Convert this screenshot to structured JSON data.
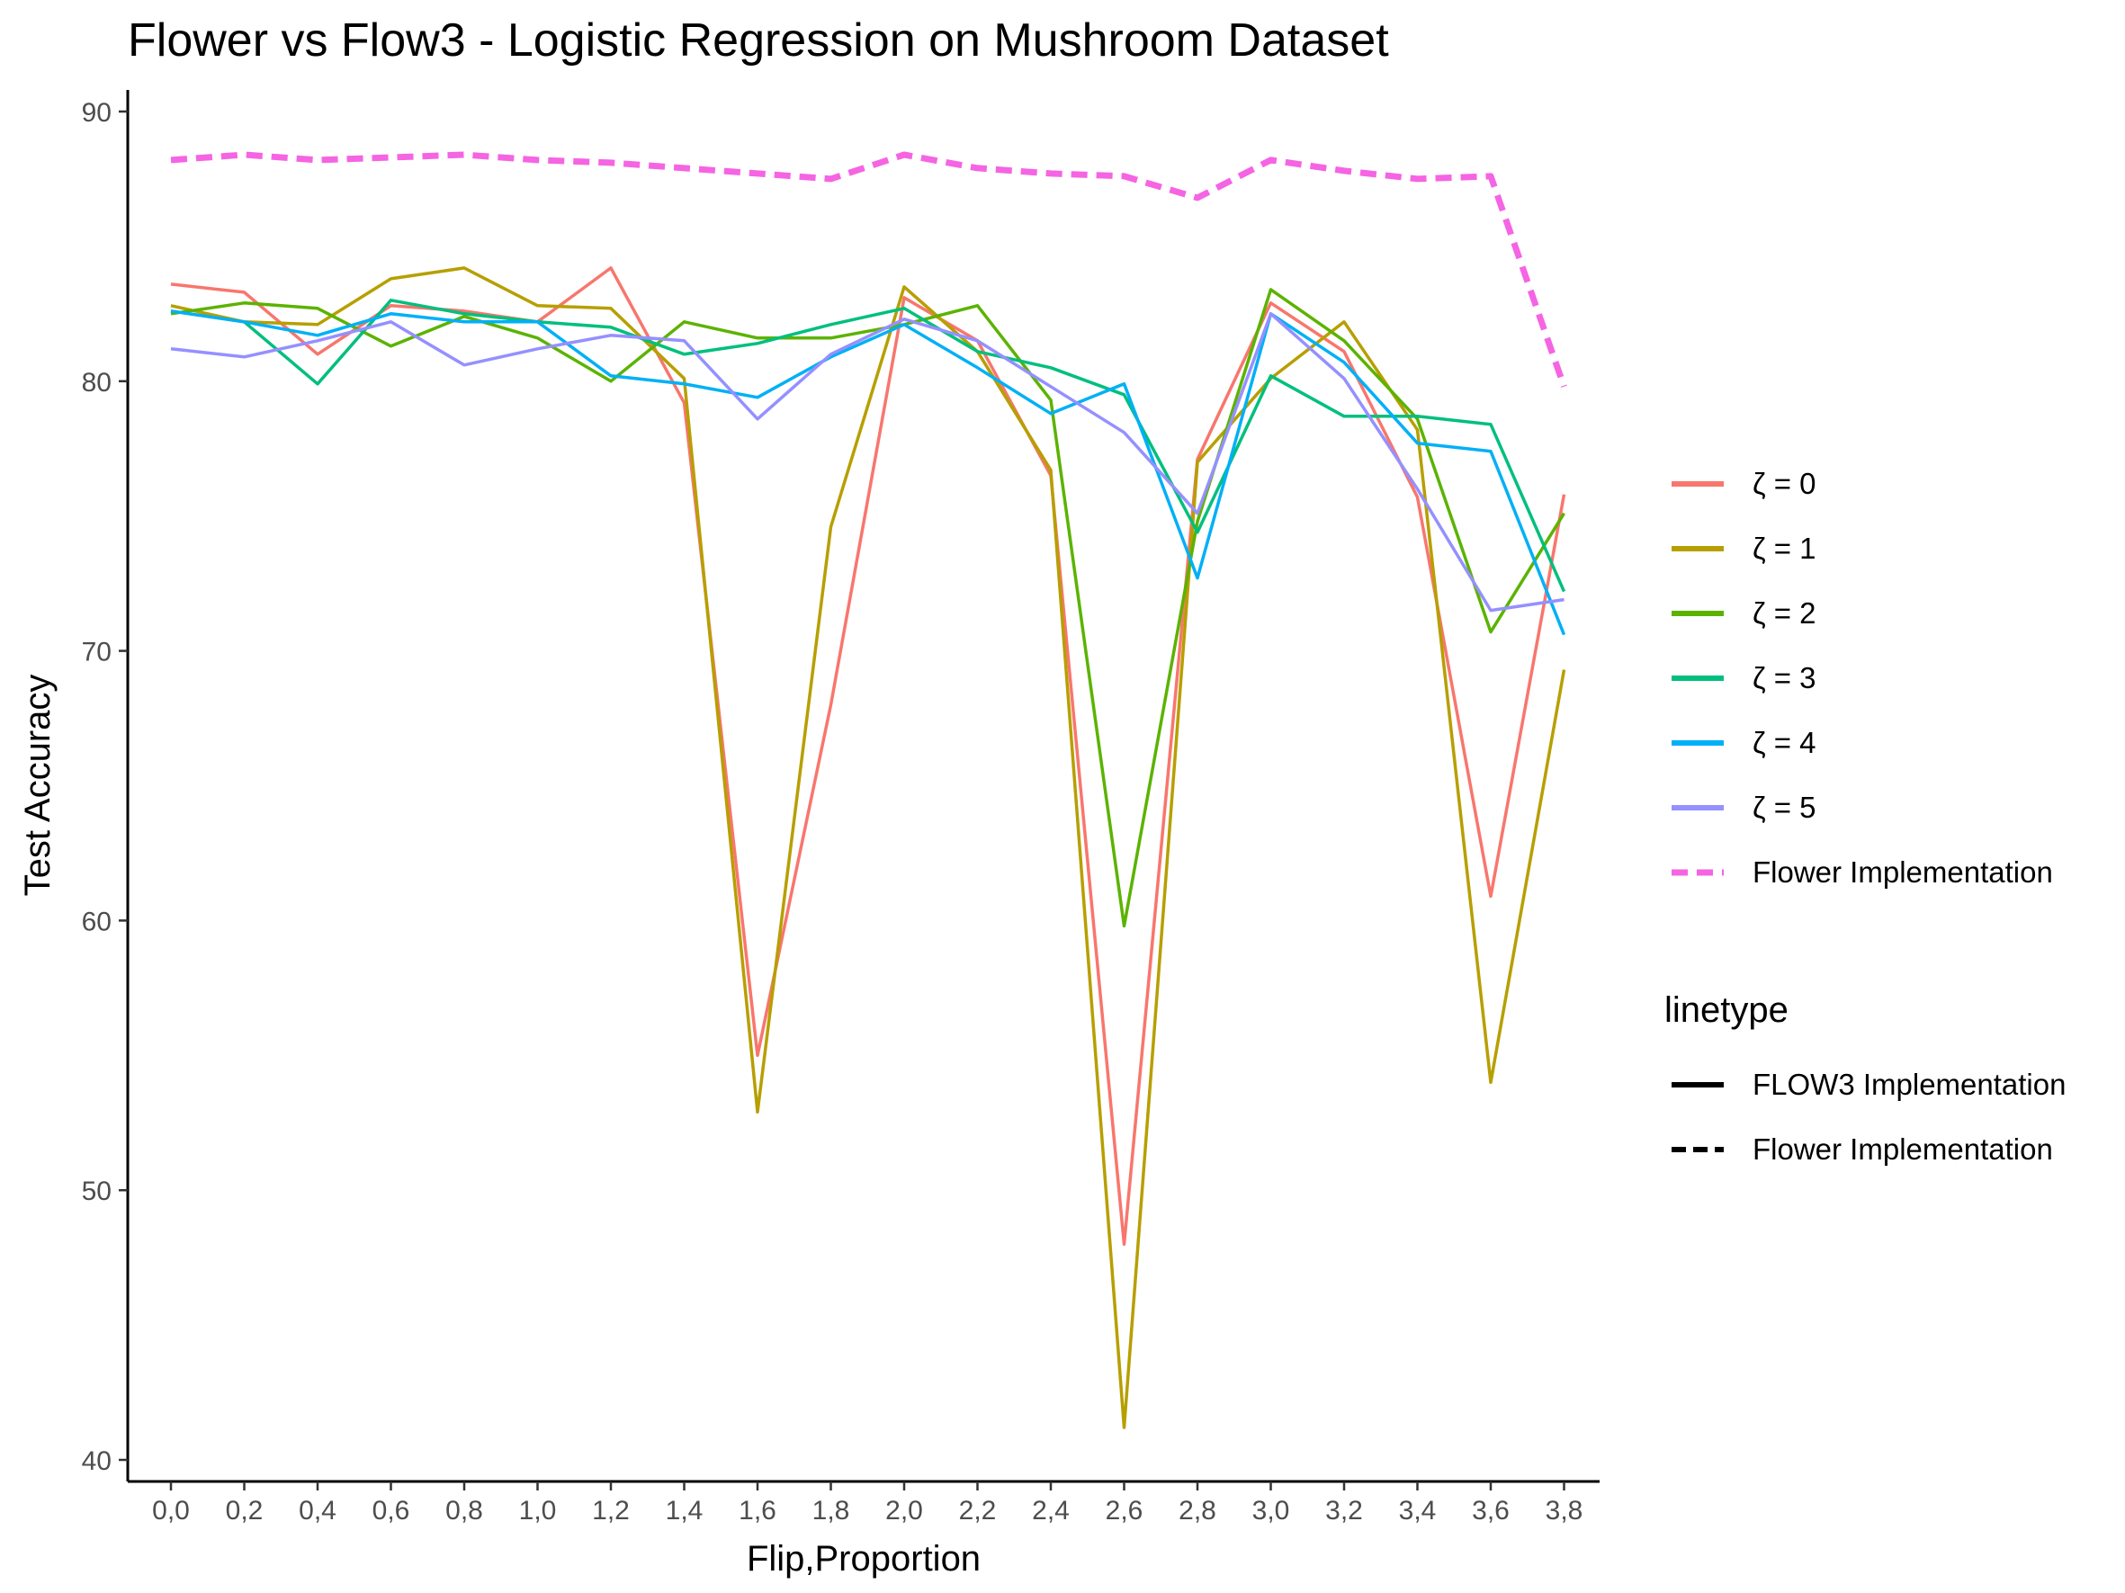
{
  "chart_data": {
    "type": "line",
    "title": "Flower vs Flow3 - Logistic Regression on Mushroom Dataset",
    "xlabel": "Flip,Proportion",
    "ylabel": "Test Accuracy",
    "categories": [
      "0,0",
      "0,2",
      "0,4",
      "0,6",
      "0,8",
      "1,0",
      "1,2",
      "1,4",
      "1,6",
      "1,8",
      "2,0",
      "2,2",
      "2,4",
      "2,6",
      "2,8",
      "3,0",
      "3,2",
      "3,4",
      "3,6",
      "3,8"
    ],
    "ylim": [
      39.2,
      90.8
    ],
    "yticks": [
      40,
      50,
      60,
      70,
      80,
      90
    ],
    "grid": false,
    "legend_position": "right",
    "series": [
      {
        "name": "ζ = 0",
        "color": "#F8766D",
        "linetype": "solid",
        "values": [
          83.6,
          83.3,
          81.0,
          82.8,
          82.6,
          82.2,
          84.2,
          79.2,
          55.0,
          68.0,
          83.1,
          81.5,
          76.5,
          48.0,
          77.1,
          82.9,
          81.1,
          75.7,
          60.9,
          75.8
        ]
      },
      {
        "name": "ζ = 1",
        "color": "#B79F00",
        "linetype": "solid",
        "values": [
          82.8,
          82.2,
          82.1,
          83.8,
          84.2,
          82.8,
          82.7,
          80.1,
          52.9,
          74.6,
          83.5,
          81.1,
          76.7,
          41.2,
          77.0,
          80.1,
          82.2,
          78.2,
          54.0,
          69.3
        ]
      },
      {
        "name": "ζ = 2",
        "color": "#5BB300",
        "linetype": "solid",
        "values": [
          82.5,
          82.9,
          82.7,
          81.3,
          82.4,
          81.6,
          80.0,
          82.2,
          81.6,
          81.6,
          82.1,
          82.8,
          79.3,
          59.8,
          74.8,
          83.4,
          81.5,
          78.6,
          70.7,
          75.1
        ]
      },
      {
        "name": "ζ = 3",
        "color": "#00BF7D",
        "linetype": "solid",
        "values": [
          82.6,
          82.2,
          79.9,
          83.0,
          82.5,
          82.2,
          82.0,
          81.0,
          81.4,
          82.1,
          82.7,
          81.1,
          80.5,
          79.5,
          74.4,
          80.2,
          78.7,
          78.7,
          78.4,
          72.2
        ]
      },
      {
        "name": "ζ = 4",
        "color": "#00B0F6",
        "linetype": "solid",
        "values": [
          82.6,
          82.2,
          81.7,
          82.5,
          82.2,
          82.2,
          80.2,
          79.9,
          79.4,
          80.9,
          82.1,
          80.5,
          78.8,
          79.9,
          72.7,
          82.5,
          80.7,
          77.7,
          77.4,
          70.6
        ]
      },
      {
        "name": "ζ = 5",
        "color": "#9590FF",
        "linetype": "solid",
        "values": [
          81.2,
          80.9,
          81.5,
          82.2,
          80.6,
          81.2,
          81.7,
          81.5,
          78.6,
          81.0,
          82.3,
          81.5,
          79.8,
          78.1,
          75.1,
          82.5,
          80.1,
          76.0,
          71.5,
          71.9
        ]
      },
      {
        "name": "Flower Implementation",
        "color": "#F564E3",
        "linetype": "dashed",
        "values": [
          88.2,
          88.4,
          88.2,
          88.3,
          88.4,
          88.2,
          88.1,
          87.9,
          87.7,
          87.5,
          88.4,
          87.9,
          87.7,
          87.6,
          86.8,
          88.2,
          87.8,
          87.5,
          87.6,
          79.8
        ]
      }
    ],
    "legend": {
      "colour_items": [
        "ζ  = 0",
        "ζ  = 1",
        "ζ  = 2",
        "ζ  = 3",
        "ζ  = 4",
        "ζ  = 5",
        "Flower Implementation"
      ],
      "linetype_title": "linetype",
      "linetype_items": [
        {
          "label": "FLOW3 Implementation",
          "linetype": "solid"
        },
        {
          "label": "Flower Implementation",
          "linetype": "dashed"
        }
      ]
    }
  }
}
